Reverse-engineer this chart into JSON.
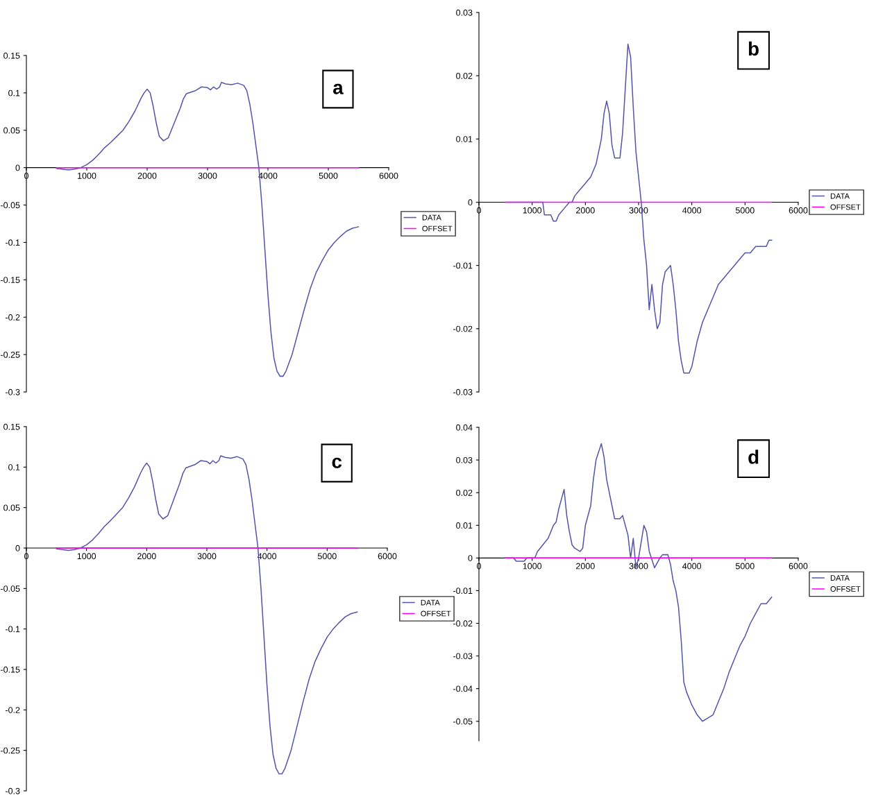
{
  "chart_data": [
    {
      "type": "line",
      "annotations": [
        "a"
      ],
      "xlim": [
        0,
        6000
      ],
      "xticks": [
        0,
        1000,
        2000,
        3000,
        4000,
        5000,
        6000
      ],
      "ylim": [
        -0.3,
        0.15
      ],
      "yticks": [
        -0.3,
        -0.25,
        -0.2,
        -0.15,
        -0.1,
        -0.05,
        0,
        0.05,
        0.1,
        0.15
      ],
      "legend": "right",
      "grid": false,
      "marker": "none",
      "line_style": "solid",
      "series": [
        {
          "name": "DATA",
          "color": "#5555aa",
          "x": [
            500,
            700,
            800,
            900,
            1000,
            1100,
            1200,
            1300,
            1400,
            1500,
            1600,
            1700,
            1800,
            1900,
            1950,
            2000,
            2050,
            2100,
            2150,
            2200,
            2270,
            2350,
            2400,
            2500,
            2550,
            2600,
            2650,
            2800,
            2900,
            3000,
            3050,
            3100,
            3150,
            3200,
            3230,
            3300,
            3400,
            3500,
            3600,
            3650,
            3700,
            3750,
            3800,
            3850,
            3900,
            3950,
            4000,
            4050,
            4100,
            4150,
            4200,
            4250,
            4300,
            4400,
            4500,
            4600,
            4700,
            4800,
            4900,
            5000,
            5100,
            5200,
            5300,
            5400,
            5500
          ],
          "values": [
            -0.001,
            -0.003,
            -0.002,
            0.0,
            0.004,
            0.01,
            0.018,
            0.027,
            0.034,
            0.042,
            0.05,
            0.062,
            0.076,
            0.093,
            0.1,
            0.105,
            0.1,
            0.082,
            0.06,
            0.042,
            0.036,
            0.04,
            0.05,
            0.07,
            0.08,
            0.092,
            0.099,
            0.103,
            0.108,
            0.107,
            0.104,
            0.108,
            0.105,
            0.108,
            0.114,
            0.112,
            0.111,
            0.113,
            0.11,
            0.103,
            0.085,
            0.06,
            0.03,
            0.0,
            -0.05,
            -0.11,
            -0.17,
            -0.22,
            -0.255,
            -0.272,
            -0.279,
            -0.279,
            -0.272,
            -0.25,
            -0.22,
            -0.19,
            -0.162,
            -0.14,
            -0.124,
            -0.11,
            -0.1,
            -0.092,
            -0.085,
            -0.081,
            -0.079
          ]
        },
        {
          "name": "OFFSET",
          "color": "#ff00ff",
          "x": [
            500,
            5500
          ],
          "values": [
            0,
            0
          ]
        }
      ]
    },
    {
      "type": "line",
      "annotations": [
        "b"
      ],
      "xlim": [
        0,
        6000
      ],
      "xticks": [
        0,
        1000,
        2000,
        3000,
        4000,
        5000,
        6000
      ],
      "ylim": [
        -0.03,
        0.03
      ],
      "yticks": [
        -0.03,
        -0.02,
        -0.01,
        0,
        0.01,
        0.02,
        0.03
      ],
      "legend": "right",
      "grid": false,
      "marker": "none",
      "line_style": "solid",
      "series": [
        {
          "name": "DATA",
          "color": "#5555aa",
          "x": [
            500,
            1200,
            1230,
            1350,
            1400,
            1450,
            1500,
            1600,
            1700,
            1750,
            1800,
            1900,
            2000,
            2100,
            2200,
            2300,
            2350,
            2400,
            2450,
            2500,
            2550,
            2650,
            2700,
            2750,
            2800,
            2850,
            2900,
            2950,
            3000,
            3050,
            3100,
            3150,
            3200,
            3250,
            3300,
            3350,
            3400,
            3450,
            3500,
            3600,
            3650,
            3700,
            3750,
            3800,
            3850,
            3950,
            4000,
            4100,
            4200,
            4300,
            4400,
            4500,
            4600,
            4700,
            4800,
            4900,
            5000,
            5100,
            5200,
            5300,
            5400,
            5450,
            5500
          ],
          "values": [
            0,
            0,
            -0.002,
            -0.002,
            -0.003,
            -0.003,
            -0.002,
            -0.001,
            0,
            0,
            0.001,
            0.002,
            0.003,
            0.004,
            0.006,
            0.01,
            0.014,
            0.016,
            0.014,
            0.009,
            0.007,
            0.007,
            0.011,
            0.018,
            0.025,
            0.023,
            0.015,
            0.008,
            0.004,
            0.0,
            -0.006,
            -0.01,
            -0.017,
            -0.013,
            -0.017,
            -0.02,
            -0.019,
            -0.013,
            -0.011,
            -0.01,
            -0.013,
            -0.017,
            -0.022,
            -0.025,
            -0.027,
            -0.027,
            -0.026,
            -0.022,
            -0.019,
            -0.017,
            -0.015,
            -0.013,
            -0.012,
            -0.011,
            -0.01,
            -0.009,
            -0.008,
            -0.008,
            -0.007,
            -0.007,
            -0.007,
            -0.006,
            -0.006
          ]
        },
        {
          "name": "OFFSET",
          "color": "#ff00ff",
          "x": [
            500,
            5500
          ],
          "values": [
            0,
            0
          ]
        }
      ]
    },
    {
      "type": "line",
      "annotations": [
        "c"
      ],
      "xlim": [
        0,
        6000
      ],
      "xticks": [
        0,
        1000,
        2000,
        3000,
        4000,
        5000,
        6000
      ],
      "ylim": [
        -0.3,
        0.15
      ],
      "yticks": [
        -0.3,
        -0.25,
        -0.2,
        -0.15,
        -0.1,
        -0.05,
        0,
        0.05,
        0.1,
        0.15
      ],
      "legend": "right",
      "grid": false,
      "marker": "none",
      "line_style": "solid",
      "series": [
        {
          "name": "DATA",
          "color": "#5555aa",
          "x": [
            500,
            700,
            800,
            900,
            1000,
            1100,
            1200,
            1300,
            1400,
            1500,
            1600,
            1700,
            1800,
            1900,
            1950,
            2000,
            2050,
            2100,
            2150,
            2200,
            2270,
            2350,
            2400,
            2500,
            2550,
            2600,
            2650,
            2800,
            2900,
            3000,
            3050,
            3100,
            3150,
            3200,
            3230,
            3300,
            3400,
            3500,
            3600,
            3650,
            3700,
            3750,
            3800,
            3850,
            3900,
            3950,
            4000,
            4050,
            4100,
            4150,
            4200,
            4250,
            4300,
            4400,
            4500,
            4600,
            4700,
            4800,
            4900,
            5000,
            5100,
            5200,
            5300,
            5400,
            5500
          ],
          "values": [
            -0.001,
            -0.003,
            -0.002,
            0.0,
            0.004,
            0.01,
            0.018,
            0.027,
            0.034,
            0.042,
            0.05,
            0.062,
            0.076,
            0.093,
            0.1,
            0.105,
            0.1,
            0.082,
            0.06,
            0.042,
            0.036,
            0.04,
            0.05,
            0.07,
            0.08,
            0.092,
            0.099,
            0.103,
            0.108,
            0.107,
            0.104,
            0.108,
            0.105,
            0.108,
            0.114,
            0.112,
            0.111,
            0.113,
            0.11,
            0.103,
            0.085,
            0.06,
            0.03,
            0.0,
            -0.05,
            -0.11,
            -0.17,
            -0.22,
            -0.255,
            -0.272,
            -0.279,
            -0.279,
            -0.272,
            -0.25,
            -0.22,
            -0.19,
            -0.162,
            -0.14,
            -0.124,
            -0.11,
            -0.1,
            -0.092,
            -0.085,
            -0.081,
            -0.079
          ]
        },
        {
          "name": "OFFSET",
          "color": "#ff00ff",
          "x": [
            500,
            5500
          ],
          "values": [
            0,
            0
          ]
        }
      ]
    },
    {
      "type": "line",
      "annotations": [
        "d"
      ],
      "xlim": [
        0,
        6000
      ],
      "xticks": [
        0,
        1000,
        2000,
        3000,
        4000,
        5000,
        6000
      ],
      "ylim": [
        -0.056,
        0.04
      ],
      "yticks": [
        -0.05,
        -0.04,
        -0.03,
        -0.02,
        -0.01,
        0,
        0.01,
        0.02,
        0.03,
        0.04
      ],
      "legend": "right",
      "grid": false,
      "marker": "none",
      "line_style": "solid",
      "series": [
        {
          "name": "DATA",
          "color": "#5555aa",
          "x": [
            500,
            650,
            700,
            850,
            900,
            1050,
            1100,
            1200,
            1300,
            1350,
            1400,
            1450,
            1500,
            1550,
            1600,
            1650,
            1700,
            1750,
            1800,
            1900,
            1950,
            2000,
            2100,
            2150,
            2200,
            2300,
            2350,
            2400,
            2500,
            2550,
            2650,
            2700,
            2800,
            2850,
            2900,
            2950,
            3000,
            3050,
            3100,
            3150,
            3200,
            3300,
            3400,
            3450,
            3550,
            3600,
            3650,
            3700,
            3750,
            3800,
            3850,
            3900,
            4000,
            4100,
            4200,
            4300,
            4400,
            4500,
            4600,
            4700,
            4800,
            4900,
            5000,
            5100,
            5200,
            5300,
            5400,
            5500
          ],
          "values": [
            0,
            0,
            -0.001,
            -0.001,
            0,
            0,
            0.002,
            0.004,
            0.006,
            0.008,
            0.01,
            0.011,
            0.015,
            0.018,
            0.021,
            0.013,
            0.008,
            0.004,
            0.003,
            0.002,
            0.003,
            0.01,
            0.016,
            0.024,
            0.03,
            0.035,
            0.031,
            0.024,
            0.016,
            0.012,
            0.012,
            0.013,
            0.007,
            0.0,
            0.006,
            -0.003,
            0.0,
            0.005,
            0.01,
            0.008,
            0.002,
            -0.003,
            0.0,
            0.001,
            0.001,
            -0.002,
            -0.007,
            -0.01,
            -0.015,
            -0.025,
            -0.038,
            -0.041,
            -0.045,
            -0.048,
            -0.05,
            -0.049,
            -0.048,
            -0.044,
            -0.04,
            -0.035,
            -0.031,
            -0.027,
            -0.024,
            -0.02,
            -0.017,
            -0.014,
            -0.014,
            -0.012
          ]
        },
        {
          "name": "OFFSET",
          "color": "#ff00ff",
          "x": [
            500,
            5500
          ],
          "values": [
            0,
            0
          ]
        }
      ]
    }
  ]
}
